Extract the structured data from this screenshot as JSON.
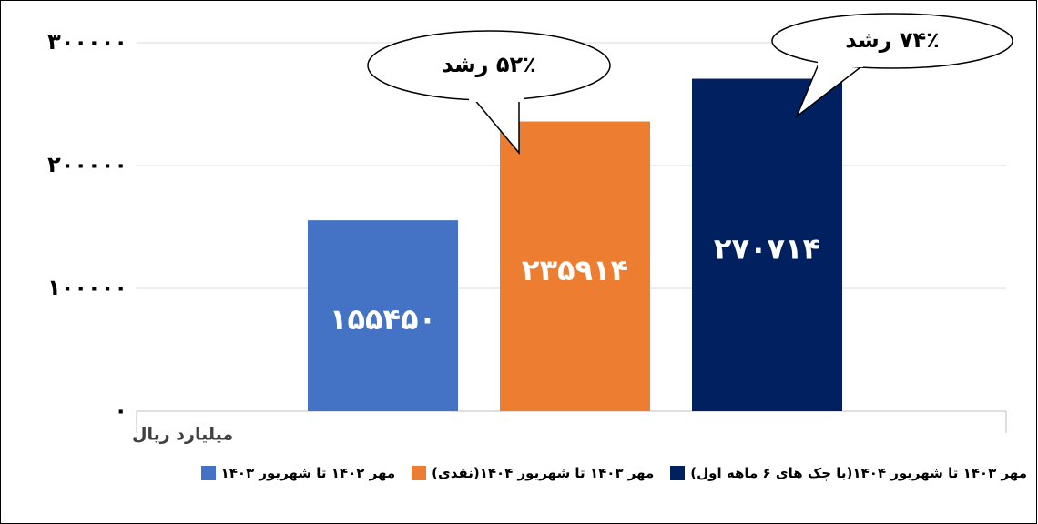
{
  "chart_data": {
    "type": "bar",
    "ylabel": "میلیارد ریال",
    "ylim": [
      0,
      300000
    ],
    "yticks": [
      {
        "value": 0,
        "label": "۰"
      },
      {
        "value": 100000,
        "label": "۱۰۰۰۰۰"
      },
      {
        "value": 200000,
        "label": "۲۰۰۰۰۰"
      },
      {
        "value": 300000,
        "label": "۳۰۰۰۰۰"
      }
    ],
    "grid": true,
    "series": [
      {
        "name": "مهر ۱۴۰۲ تا شهریور ۱۴۰۳",
        "color": "#4472c4",
        "values": [
          155450
        ],
        "value_labels": [
          "۱۵۵۴۵۰"
        ]
      },
      {
        "name": "مهر ۱۴۰۳ تا شهریور ۱۴۰۴(نقدی)",
        "color": "#ed7d31",
        "values": [
          235914
        ],
        "value_labels": [
          "۲۳۵۹۱۴"
        ]
      },
      {
        "name": "مهر ۱۴۰۳ تا شهریور ۱۴۰۴(با چک های ۶ ماهه اول)",
        "color": "#002060",
        "values": [
          270714
        ],
        "value_labels": [
          "۲۷۰۷۱۴"
        ]
      }
    ],
    "annotations": [
      "۵۲٪ رشد",
      "۷۴٪ رشد"
    ]
  }
}
